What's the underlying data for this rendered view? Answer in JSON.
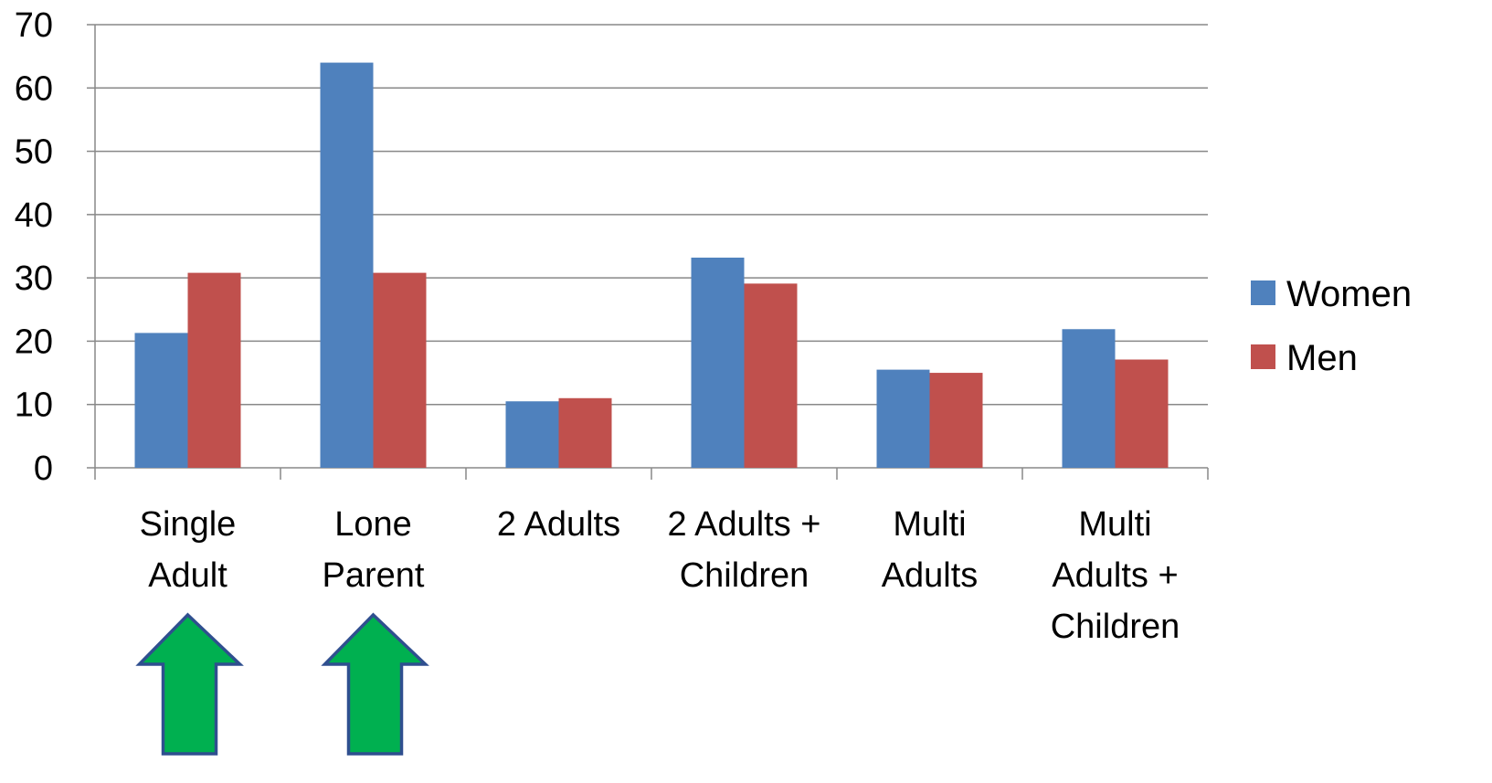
{
  "chart_data": {
    "type": "bar",
    "title": "",
    "xlabel": "",
    "ylabel": "",
    "ylim": [
      0,
      70
    ],
    "yticks": [
      0,
      10,
      20,
      30,
      40,
      50,
      60,
      70
    ],
    "grid": true,
    "legend_position": "right",
    "categories": [
      [
        "Single",
        "Adult"
      ],
      [
        "Lone",
        "Parent"
      ],
      [
        "2 Adults"
      ],
      [
        "2 Adults +",
        "Children"
      ],
      [
        "Multi",
        "Adults"
      ],
      [
        "Multi",
        "Adults +",
        "Children"
      ]
    ],
    "series": [
      {
        "name": "Women",
        "color": "#4F81BD",
        "values": [
          21.3,
          64.0,
          10.5,
          33.2,
          15.5,
          21.9
        ]
      },
      {
        "name": "Men",
        "color": "#C0504D",
        "values": [
          30.8,
          30.8,
          11.0,
          29.1,
          15.0,
          17.1
        ]
      }
    ],
    "annotations": {
      "arrow_icon": "up-arrow-icon",
      "arrow_color": "#00B050",
      "arrow_categories": [
        0,
        1
      ]
    }
  }
}
